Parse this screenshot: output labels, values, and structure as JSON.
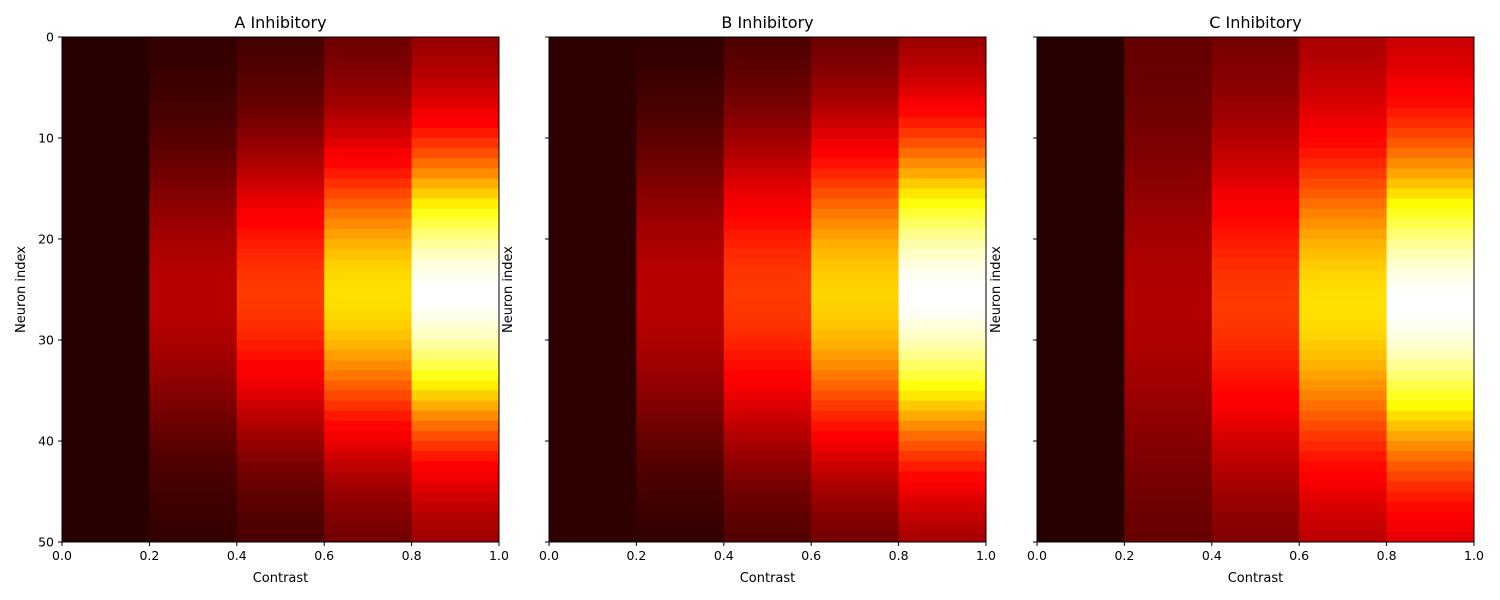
{
  "chart_data": [
    {
      "type": "heatmap",
      "title": "A Inhibitory",
      "xlabel": "Contrast",
      "ylabel": "Neuron index",
      "xlim": [
        0.0,
        1.0
      ],
      "ylim": [
        50,
        0
      ],
      "xticks": [
        "0.0",
        "0.2",
        "0.4",
        "0.6",
        "0.8",
        "1.0"
      ],
      "yticks": [
        "0",
        "10",
        "20",
        "30",
        "40",
        "50"
      ],
      "show_ytick_labels": true,
      "colormap": "hot",
      "contrast_bins": [
        0.0,
        0.2,
        0.4,
        0.6,
        0.8,
        1.0
      ],
      "neuron_count": 50,
      "peak_neuron": 25.5,
      "profile_width": 10,
      "column_baseline": [
        0.04,
        0.05,
        0.07,
        0.12,
        0.17
      ],
      "column_peak": [
        0.04,
        0.25,
        0.45,
        0.7,
        1.0
      ],
      "grid": false,
      "legend": "none"
    },
    {
      "type": "heatmap",
      "title": "B Inhibitory",
      "xlabel": "Contrast",
      "ylabel": "Neuron index",
      "xlim": [
        0.0,
        1.0
      ],
      "ylim": [
        50,
        0
      ],
      "xticks": [
        "0.0",
        "0.2",
        "0.4",
        "0.6",
        "0.8",
        "1.0"
      ],
      "yticks": [
        "0",
        "10",
        "20",
        "30",
        "40",
        "50"
      ],
      "show_ytick_labels": false,
      "colormap": "hot",
      "contrast_bins": [
        0.0,
        0.2,
        0.4,
        0.6,
        0.8,
        1.0
      ],
      "neuron_count": 50,
      "peak_neuron": 25.5,
      "profile_width": 11,
      "column_baseline": [
        0.05,
        0.04,
        0.07,
        0.1,
        0.15
      ],
      "column_peak": [
        0.05,
        0.25,
        0.45,
        0.68,
        1.0
      ],
      "grid": false,
      "legend": "none"
    },
    {
      "type": "heatmap",
      "title": "C Inhibitory",
      "xlabel": "Contrast",
      "ylabel": "Neuron index",
      "xlim": [
        0.0,
        1.0
      ],
      "ylim": [
        50,
        0
      ],
      "xticks": [
        "0.0",
        "0.2",
        "0.4",
        "0.6",
        "0.8",
        "1.0"
      ],
      "yticks": [
        "0",
        "10",
        "20",
        "30",
        "40",
        "50"
      ],
      "show_ytick_labels": false,
      "colormap": "hot",
      "contrast_bins": [
        0.0,
        0.2,
        0.4,
        0.6,
        0.8,
        1.0
      ],
      "neuron_count": 50,
      "peak_neuron": 26.5,
      "profile_width": 11,
      "column_baseline": [
        0.04,
        0.12,
        0.14,
        0.2,
        0.23
      ],
      "column_peak": [
        0.04,
        0.24,
        0.45,
        0.7,
        1.0
      ],
      "grid": false,
      "legend": "none"
    }
  ]
}
